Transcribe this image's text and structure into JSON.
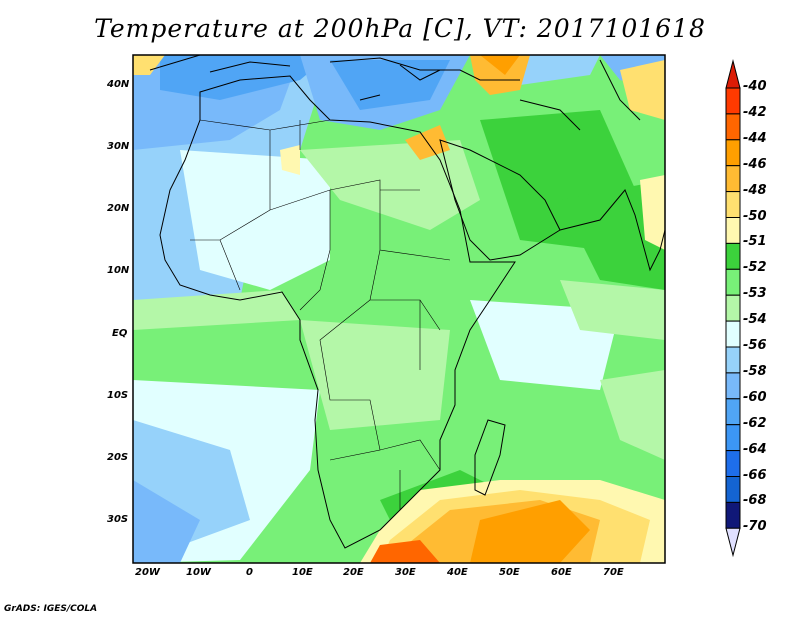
{
  "title": "Temperature at 200hPa [C], VT: 2017101618",
  "credit": "GrADS: IGES/COLA",
  "map": {
    "lon_labels": [
      "20W",
      "10W",
      "0",
      "10E",
      "20E",
      "30E",
      "40E",
      "50E",
      "60E",
      "70E"
    ],
    "lat_labels": [
      "40N",
      "30N",
      "20N",
      "10N",
      "EQ",
      "10S",
      "20S",
      "30S"
    ]
  },
  "colorbar": {
    "levels": [
      "-40",
      "-42",
      "-44",
      "-46",
      "-48",
      "-50",
      "-51",
      "-52",
      "-53",
      "-54",
      "-56",
      "-58",
      "-60",
      "-62",
      "-64",
      "-66",
      "-68",
      "-70"
    ],
    "colors": [
      "#ff3a00",
      "#ff6600",
      "#ff9f00",
      "#ffbb33",
      "#ffe070",
      "#fff8b0",
      "#3cd23c",
      "#78f078",
      "#b4f7a8",
      "#e1ffff",
      "#96d2fa",
      "#78b9fa",
      "#50a5f5",
      "#3c96f5",
      "#1e6eeb",
      "#1464d2",
      "#101878"
    ],
    "over_color": "#dc1c06",
    "under_color": "#e0e0ff"
  }
}
